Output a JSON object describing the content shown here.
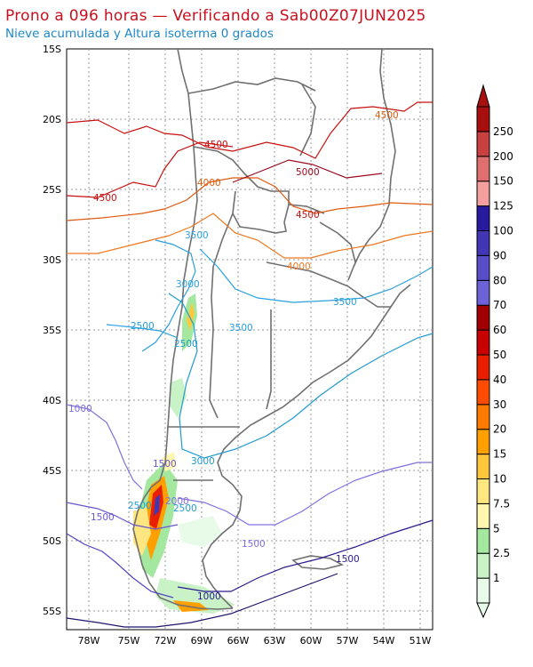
{
  "header": {
    "title": "Prono a 096 horas — Verificando a Sab00Z07JUN2025",
    "subtitle": "Nieve acumulada y Altura isoterma 0 grados"
  },
  "map": {
    "lat_labels": [
      "15S",
      "20S",
      "25S",
      "30S",
      "35S",
      "40S",
      "45S",
      "50S",
      "55S"
    ],
    "lon_labels": [
      "78W",
      "75W",
      "72W",
      "69W",
      "66W",
      "63W",
      "60W",
      "57W",
      "54W",
      "51W"
    ],
    "contour_labels": [
      "4500",
      "4500",
      "4500",
      "4000",
      "4000",
      "4500",
      "5000",
      "3500",
      "3000",
      "2500",
      "2500",
      "3500",
      "3500",
      "1000",
      "1500",
      "1500",
      "3000",
      "2000",
      "2500",
      "2500",
      "1500",
      "1500",
      "1000"
    ]
  },
  "colorbar": {
    "levels": [
      "1",
      "2.5",
      "5",
      "7.5",
      "10",
      "15",
      "20",
      "30",
      "40",
      "50",
      "60",
      "70",
      "80",
      "90",
      "100",
      "125",
      "150",
      "200",
      "250"
    ],
    "colors": [
      "#e8fbe8",
      "#c9f2c7",
      "#a4e8a0",
      "#fff7b0",
      "#ffe680",
      "#ffc83c",
      "#ffa000",
      "#ff7a00",
      "#ff4c00",
      "#e82000",
      "#c80000",
      "#a00000",
      "#6e62d8",
      "#5a4ec8",
      "#4236b4",
      "#2a1aa0",
      "#f4a0a0",
      "#e07070",
      "#c84040",
      "#a81010"
    ]
  }
}
